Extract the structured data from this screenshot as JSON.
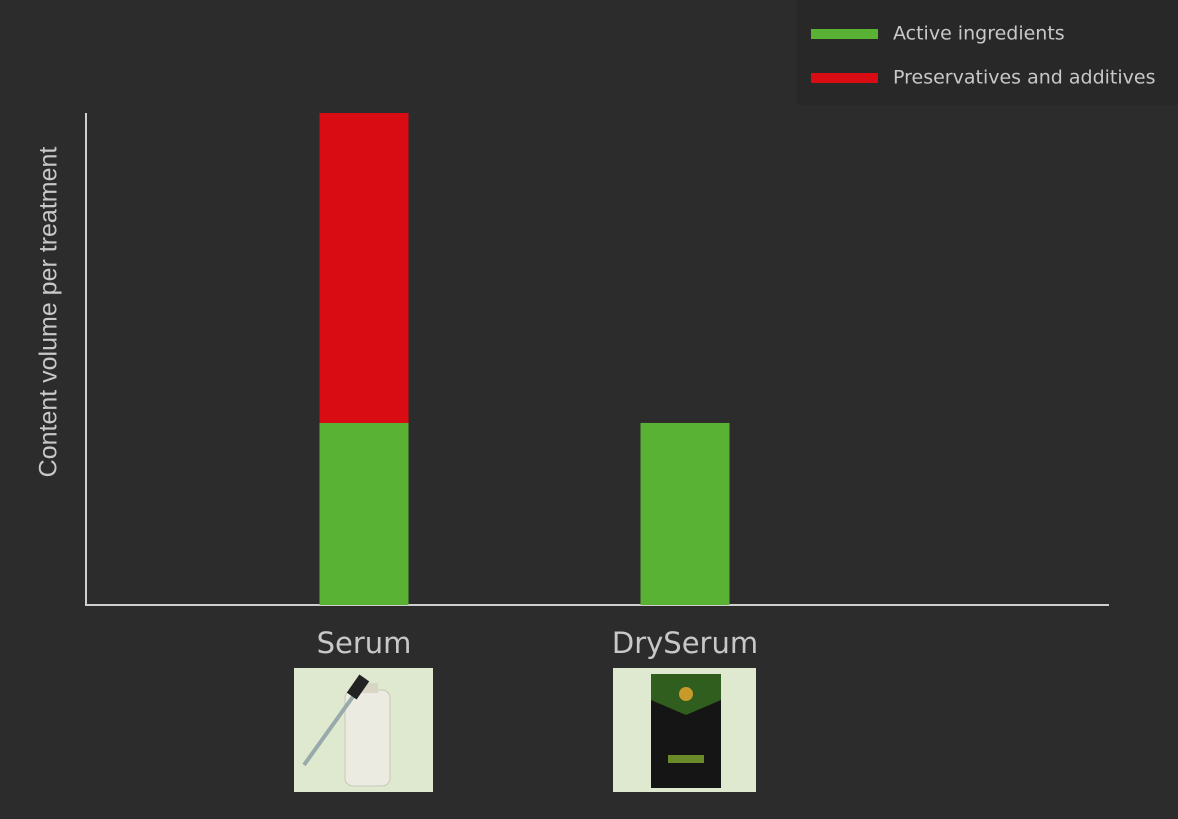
{
  "chart_data": {
    "type": "stacked_bar",
    "ylabel": "Content volume per treatment",
    "categories": [
      "Serum",
      "DrySerum"
    ],
    "series": [
      {
        "name": "Active ingredients",
        "color": "#5ab234",
        "values": [
          37,
          37
        ]
      },
      {
        "name": "Preservatives and additives",
        "color": "#d90c14",
        "values": [
          63,
          0
        ]
      }
    ],
    "ylim": [
      0,
      100
    ],
    "legend": "upper right"
  }
}
